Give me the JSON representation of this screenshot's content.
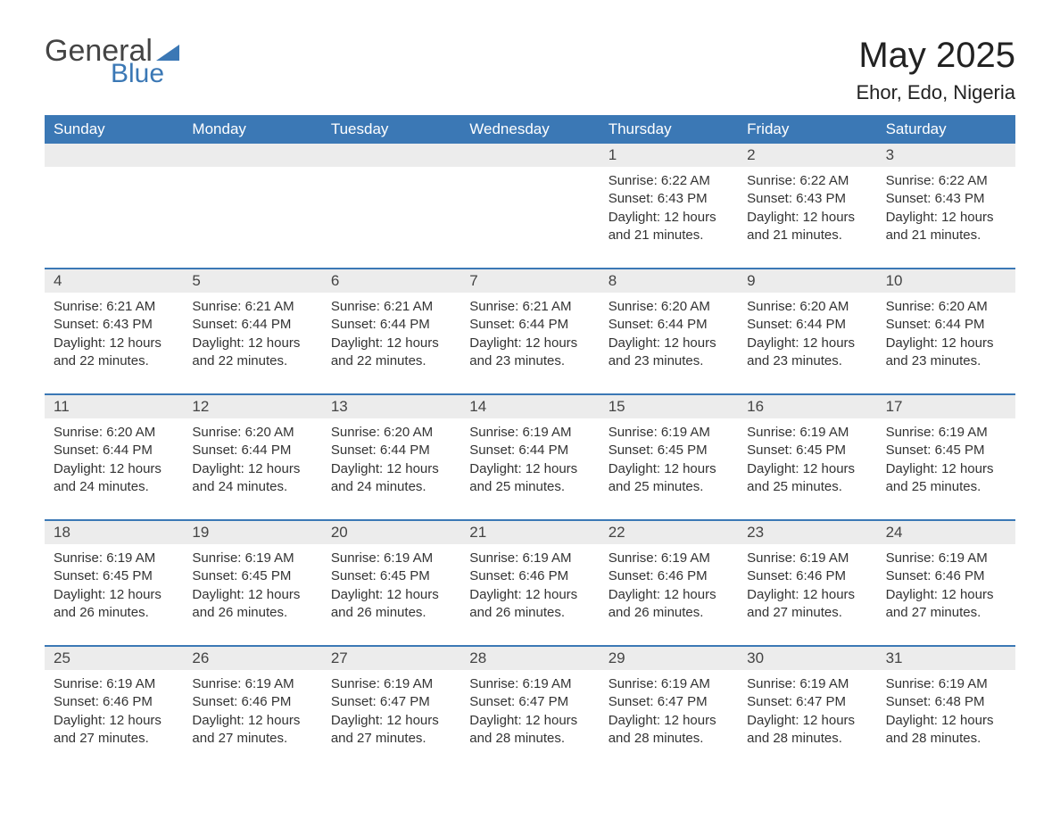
{
  "logo": {
    "text1": "General",
    "text2": "Blue"
  },
  "title": "May 2025",
  "location": "Ehor, Edo, Nigeria",
  "colors": {
    "brand_blue": "#3b78b5",
    "band_gray": "#ececec",
    "text": "#333333",
    "background": "#ffffff"
  },
  "dow": [
    "Sunday",
    "Monday",
    "Tuesday",
    "Wednesday",
    "Thursday",
    "Friday",
    "Saturday"
  ],
  "labels": {
    "sunrise": "Sunrise: ",
    "sunset": "Sunset: ",
    "daylight": "Daylight: "
  },
  "weeks": [
    [
      null,
      null,
      null,
      null,
      {
        "d": "1",
        "sr": "6:22 AM",
        "ss": "6:43 PM",
        "dl": "12 hours and 21 minutes."
      },
      {
        "d": "2",
        "sr": "6:22 AM",
        "ss": "6:43 PM",
        "dl": "12 hours and 21 minutes."
      },
      {
        "d": "3",
        "sr": "6:22 AM",
        "ss": "6:43 PM",
        "dl": "12 hours and 21 minutes."
      }
    ],
    [
      {
        "d": "4",
        "sr": "6:21 AM",
        "ss": "6:43 PM",
        "dl": "12 hours and 22 minutes."
      },
      {
        "d": "5",
        "sr": "6:21 AM",
        "ss": "6:44 PM",
        "dl": "12 hours and 22 minutes."
      },
      {
        "d": "6",
        "sr": "6:21 AM",
        "ss": "6:44 PM",
        "dl": "12 hours and 22 minutes."
      },
      {
        "d": "7",
        "sr": "6:21 AM",
        "ss": "6:44 PM",
        "dl": "12 hours and 23 minutes."
      },
      {
        "d": "8",
        "sr": "6:20 AM",
        "ss": "6:44 PM",
        "dl": "12 hours and 23 minutes."
      },
      {
        "d": "9",
        "sr": "6:20 AM",
        "ss": "6:44 PM",
        "dl": "12 hours and 23 minutes."
      },
      {
        "d": "10",
        "sr": "6:20 AM",
        "ss": "6:44 PM",
        "dl": "12 hours and 23 minutes."
      }
    ],
    [
      {
        "d": "11",
        "sr": "6:20 AM",
        "ss": "6:44 PM",
        "dl": "12 hours and 24 minutes."
      },
      {
        "d": "12",
        "sr": "6:20 AM",
        "ss": "6:44 PM",
        "dl": "12 hours and 24 minutes."
      },
      {
        "d": "13",
        "sr": "6:20 AM",
        "ss": "6:44 PM",
        "dl": "12 hours and 24 minutes."
      },
      {
        "d": "14",
        "sr": "6:19 AM",
        "ss": "6:44 PM",
        "dl": "12 hours and 25 minutes."
      },
      {
        "d": "15",
        "sr": "6:19 AM",
        "ss": "6:45 PM",
        "dl": "12 hours and 25 minutes."
      },
      {
        "d": "16",
        "sr": "6:19 AM",
        "ss": "6:45 PM",
        "dl": "12 hours and 25 minutes."
      },
      {
        "d": "17",
        "sr": "6:19 AM",
        "ss": "6:45 PM",
        "dl": "12 hours and 25 minutes."
      }
    ],
    [
      {
        "d": "18",
        "sr": "6:19 AM",
        "ss": "6:45 PM",
        "dl": "12 hours and 26 minutes."
      },
      {
        "d": "19",
        "sr": "6:19 AM",
        "ss": "6:45 PM",
        "dl": "12 hours and 26 minutes."
      },
      {
        "d": "20",
        "sr": "6:19 AM",
        "ss": "6:45 PM",
        "dl": "12 hours and 26 minutes."
      },
      {
        "d": "21",
        "sr": "6:19 AM",
        "ss": "6:46 PM",
        "dl": "12 hours and 26 minutes."
      },
      {
        "d": "22",
        "sr": "6:19 AM",
        "ss": "6:46 PM",
        "dl": "12 hours and 26 minutes."
      },
      {
        "d": "23",
        "sr": "6:19 AM",
        "ss": "6:46 PM",
        "dl": "12 hours and 27 minutes."
      },
      {
        "d": "24",
        "sr": "6:19 AM",
        "ss": "6:46 PM",
        "dl": "12 hours and 27 minutes."
      }
    ],
    [
      {
        "d": "25",
        "sr": "6:19 AM",
        "ss": "6:46 PM",
        "dl": "12 hours and 27 minutes."
      },
      {
        "d": "26",
        "sr": "6:19 AM",
        "ss": "6:46 PM",
        "dl": "12 hours and 27 minutes."
      },
      {
        "d": "27",
        "sr": "6:19 AM",
        "ss": "6:47 PM",
        "dl": "12 hours and 27 minutes."
      },
      {
        "d": "28",
        "sr": "6:19 AM",
        "ss": "6:47 PM",
        "dl": "12 hours and 28 minutes."
      },
      {
        "d": "29",
        "sr": "6:19 AM",
        "ss": "6:47 PM",
        "dl": "12 hours and 28 minutes."
      },
      {
        "d": "30",
        "sr": "6:19 AM",
        "ss": "6:47 PM",
        "dl": "12 hours and 28 minutes."
      },
      {
        "d": "31",
        "sr": "6:19 AM",
        "ss": "6:48 PM",
        "dl": "12 hours and 28 minutes."
      }
    ]
  ]
}
